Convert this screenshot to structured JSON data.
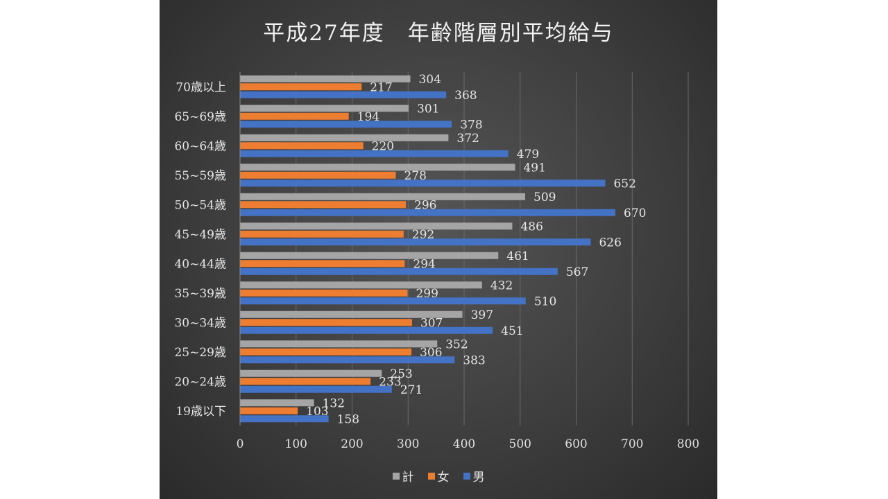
{
  "chart_data": {
    "type": "bar",
    "orientation": "horizontal",
    "title": "平成27年度　年齢階層別平均給与",
    "categories": [
      "70歳以上",
      "65~69歳",
      "60~64歳",
      "55~59歳",
      "50~54歳",
      "45~49歳",
      "40~44歳",
      "35~39歳",
      "30~34歳",
      "25~29歳",
      "20~24歳",
      "19歳以下"
    ],
    "series": [
      {
        "name": "計",
        "color": "#a5a5a5",
        "values": [
          304,
          301,
          372,
          491,
          509,
          486,
          461,
          432,
          397,
          352,
          253,
          132
        ]
      },
      {
        "name": "女",
        "color": "#ed7d31",
        "values": [
          217,
          194,
          220,
          278,
          296,
          292,
          294,
          299,
          307,
          306,
          233,
          103
        ]
      },
      {
        "name": "男",
        "color": "#4472c4",
        "values": [
          368,
          378,
          479,
          652,
          670,
          626,
          567,
          510,
          451,
          383,
          271,
          158
        ]
      }
    ],
    "xlim": [
      0,
      800
    ],
    "xticks": [
      "0",
      "100",
      "200",
      "300",
      "400",
      "500",
      "600",
      "700",
      "800"
    ],
    "xlabel": "",
    "ylabel": "",
    "grid": "vertical",
    "legend": "bottom"
  }
}
